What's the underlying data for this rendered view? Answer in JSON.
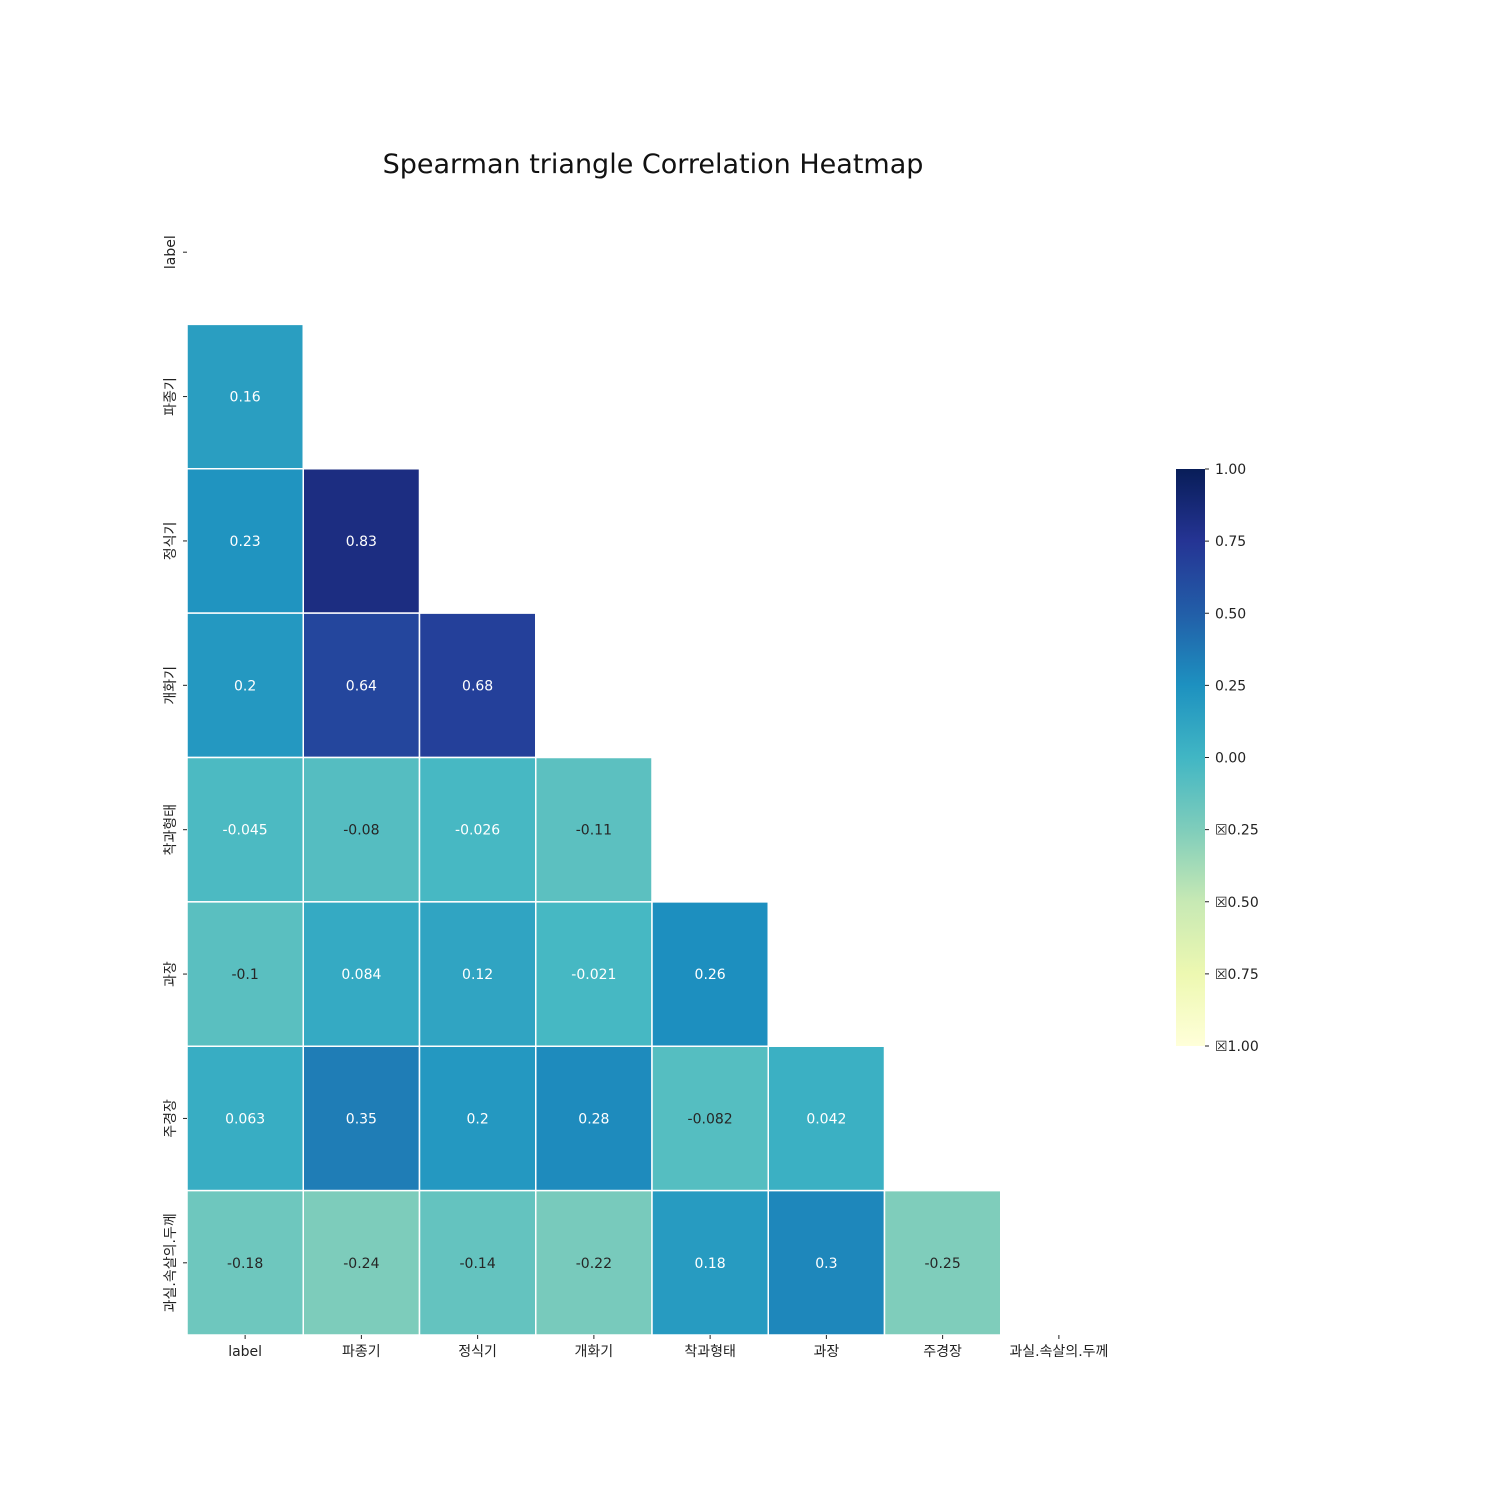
{
  "chart_data": {
    "type": "heatmap",
    "title": "Spearman triangle Correlation Heatmap",
    "xlabel": "",
    "ylabel": "",
    "variables": [
      "label",
      "파종기",
      "정식기",
      "개화기",
      "착과형태",
      "과장",
      "주경장",
      "과실.속살의.두께"
    ],
    "mask": "upper-triangle-including-diagonal",
    "matrix": [
      [
        null,
        null,
        null,
        null,
        null,
        null,
        null,
        null
      ],
      [
        0.16,
        null,
        null,
        null,
        null,
        null,
        null,
        null
      ],
      [
        0.23,
        0.83,
        null,
        null,
        null,
        null,
        null,
        null
      ],
      [
        0.2,
        0.64,
        0.68,
        null,
        null,
        null,
        null,
        null
      ],
      [
        -0.045,
        -0.08,
        -0.026,
        -0.11,
        null,
        null,
        null,
        null
      ],
      [
        -0.1,
        0.084,
        0.12,
        -0.021,
        0.26,
        null,
        null,
        null
      ],
      [
        0.063,
        0.35,
        0.2,
        0.28,
        -0.082,
        0.042,
        null,
        null
      ],
      [
        -0.18,
        -0.24,
        -0.14,
        -0.22,
        0.18,
        0.3,
        -0.25,
        null
      ]
    ],
    "cell_labels": [
      [
        null,
        null,
        null,
        null,
        null,
        null,
        null,
        null
      ],
      [
        "0.16",
        null,
        null,
        null,
        null,
        null,
        null,
        null
      ],
      [
        "0.23",
        "0.83",
        null,
        null,
        null,
        null,
        null,
        null
      ],
      [
        "0.2",
        "0.64",
        "0.68",
        null,
        null,
        null,
        null,
        null
      ],
      [
        "-0.045",
        "-0.08",
        "-0.026",
        "-0.11",
        null,
        null,
        null,
        null
      ],
      [
        "-0.1",
        "0.084",
        "0.12",
        "-0.021",
        "0.26",
        null,
        null,
        null
      ],
      [
        "0.063",
        "0.35",
        "0.2",
        "0.28",
        "-0.082",
        "0.042",
        null,
        null
      ],
      [
        "-0.18",
        "-0.24",
        "-0.14",
        "-0.22",
        "0.18",
        "0.3",
        "-0.25",
        null
      ]
    ],
    "colormap": "YlGnBu",
    "colormap_stops": [
      "#ffffd9",
      "#edf8b1",
      "#c7e9b4",
      "#7fcdbb",
      "#41b6c4",
      "#1d91c0",
      "#225ea8",
      "#253494",
      "#081d58"
    ],
    "vmin": -1.0,
    "vmax": 1.0,
    "colorbar": {
      "ticks": [
        1.0,
        0.75,
        0.5,
        0.25,
        0.0,
        -0.25,
        -0.5,
        -0.75,
        -1.0
      ],
      "tick_labels": [
        "1.00",
        "0.75",
        "0.50",
        "0.25",
        "0.00",
        "☒0.25",
        "☒0.50",
        "☒0.75",
        "☒1.00"
      ],
      "placement": "right"
    },
    "grid": false,
    "cell_border_color": "#ffffff",
    "text_light_color": "#ffffff",
    "text_dark_color": "#262626"
  }
}
